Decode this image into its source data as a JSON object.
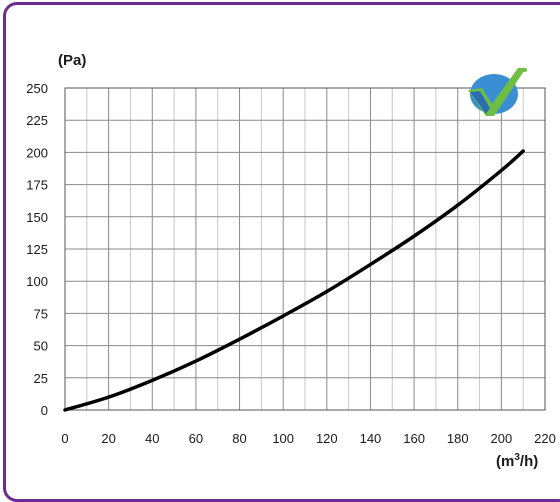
{
  "chart_data": {
    "type": "line",
    "ylabel": "(Pa)",
    "xlabel_prefix": "(m",
    "xlabel_sup": "3",
    "xlabel_suffix": "/h)",
    "xlim": [
      0,
      220
    ],
    "ylim": [
      0,
      250
    ],
    "x_ticks": [
      0,
      20,
      40,
      60,
      80,
      100,
      120,
      140,
      160,
      180,
      200,
      220
    ],
    "y_ticks": [
      0,
      25,
      50,
      75,
      100,
      125,
      150,
      175,
      200,
      225,
      250
    ],
    "x_minor_gridlines": [
      10,
      30,
      50,
      70,
      90,
      110,
      130,
      150,
      170,
      190,
      210
    ],
    "grid": true,
    "series": [
      {
        "x": [
          0,
          20,
          40,
          60,
          80,
          100,
          120,
          140,
          160,
          180,
          200,
          210
        ],
        "y": [
          0,
          10,
          23,
          38,
          55,
          73,
          92,
          113,
          135,
          159,
          186,
          201
        ],
        "color": "#000000"
      }
    ]
  },
  "logo": {
    "name": "check-logo-icon",
    "colors": [
      "#3a8fd4",
      "#6fbe44",
      "#2a6fb0"
    ]
  }
}
